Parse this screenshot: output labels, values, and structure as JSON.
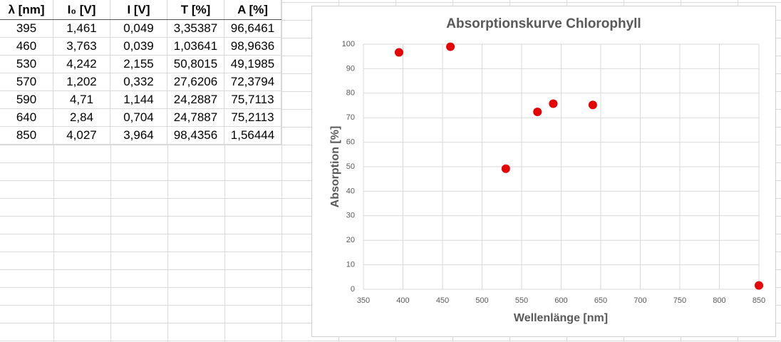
{
  "table": {
    "header": [
      "λ [nm]",
      "I₀ [V]",
      "I [V]",
      "T [%]",
      "A [%]"
    ],
    "rows": [
      [
        "395",
        "1,461",
        "0,049",
        "3,35387",
        "96,6461"
      ],
      [
        "460",
        "3,763",
        "0,039",
        "1,03641",
        "98,9636"
      ],
      [
        "530",
        "4,242",
        "2,155",
        "50,8015",
        "49,1985"
      ],
      [
        "570",
        "1,202",
        "0,332",
        "27,6206",
        "72,3794"
      ],
      [
        "590",
        "4,71",
        "1,144",
        "24,2887",
        "75,7113"
      ],
      [
        "640",
        "2,84",
        "0,704",
        "24,7887",
        "75,2113"
      ],
      [
        "850",
        "4,027",
        "3,964",
        "98,4356",
        "1,56444"
      ]
    ]
  },
  "chart_data": {
    "type": "scatter",
    "title": "Absorptionskurve Chlorophyll",
    "x_label": "Wellenlänge [nm]",
    "y_label": "Absorption [%]",
    "x": [
      395,
      460,
      530,
      570,
      590,
      640,
      850
    ],
    "values": [
      96.6461,
      98.9636,
      49.1985,
      72.3794,
      75.7113,
      75.2113,
      1.56444
    ],
    "color": "#e60000",
    "xlim": [
      350,
      850
    ],
    "xticks": [
      350,
      400,
      450,
      500,
      550,
      600,
      650,
      700,
      750,
      800,
      850
    ],
    "ylim": [
      0,
      100
    ],
    "yticks": [
      0,
      10,
      20,
      30,
      40,
      50,
      60,
      70,
      80,
      90,
      100
    ],
    "grid": true
  }
}
